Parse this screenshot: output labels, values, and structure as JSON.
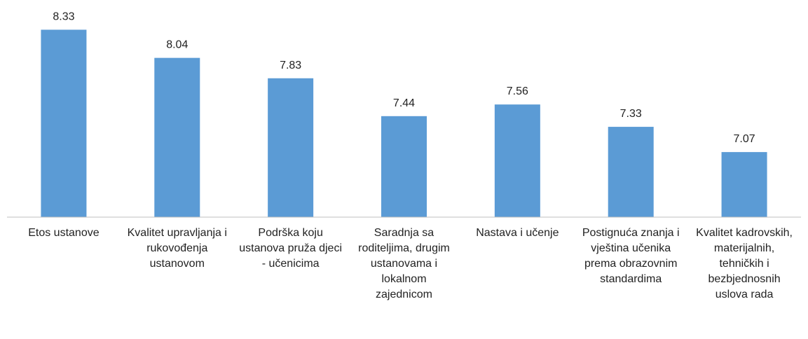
{
  "chart_data": {
    "type": "bar",
    "categories": [
      "Etos ustanove",
      "Kvalitet upravljanja i rukovođenja ustanovom",
      "Podrška koju ustanova pruža djeci - učenicima",
      "Saradnja sa roditeljima, drugim ustanovama i lokalnom zajednicom",
      "Nastava i učenje",
      "Postignuća znanja i vještina učenika prema obrazovnim standardima",
      "Kvalitet kadrovskih, materijalnih, tehničkih i bezbjednosnih uslova rada"
    ],
    "values": [
      8.33,
      8.04,
      7.83,
      7.44,
      7.56,
      7.33,
      7.07
    ],
    "color": "#5b9bd5",
    "ylim": [
      6.4,
      8.6
    ]
  }
}
